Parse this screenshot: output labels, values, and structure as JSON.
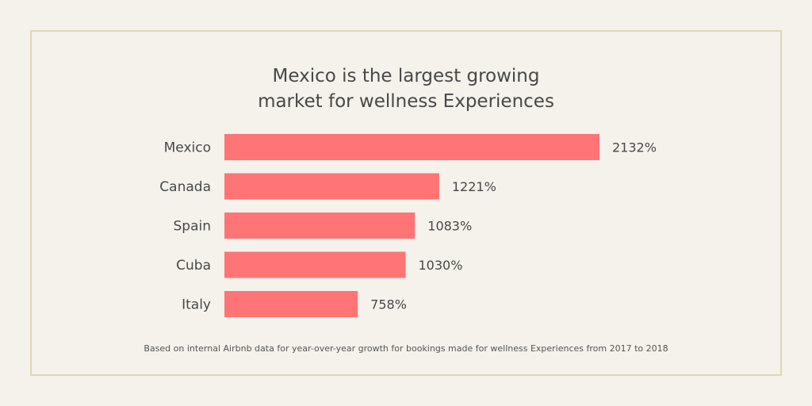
{
  "chart_data": {
    "type": "bar",
    "orientation": "horizontal",
    "title_lines": [
      "Mexico is the largest growing",
      "market for wellness Experiences"
    ],
    "categories": [
      "Mexico",
      "Canada",
      "Spain",
      "Cuba",
      "Italy"
    ],
    "values": [
      2132,
      1221,
      1083,
      1030,
      758
    ],
    "value_labels": [
      "2132%",
      "1221%",
      "1083%",
      "1030%",
      "758%"
    ],
    "unit": "%",
    "xlim": [
      0,
      2200
    ],
    "grid": false,
    "bar_color": "#ff7475",
    "footnote": "Based on internal Airbnb data for year-over-year growth for bookings made for wellness Experiences from 2017 to 2018"
  }
}
